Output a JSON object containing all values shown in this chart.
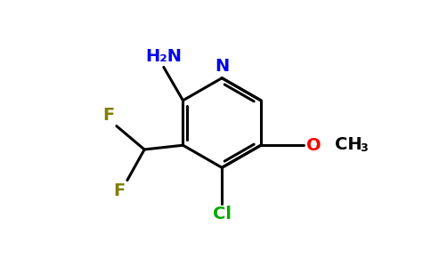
{
  "background_color": "#ffffff",
  "figsize": [
    4.84,
    3.0
  ],
  "dpi": 100,
  "bond_lw": 2.2,
  "bond_color": "#000000",
  "colors": {
    "N": "#0000ee",
    "F": "#7f7f00",
    "Cl": "#00aa00",
    "O": "#ff0000",
    "C": "#000000"
  },
  "font_size": 14,
  "xlim": [
    0,
    10
  ],
  "ylim": [
    0,
    6.2
  ]
}
